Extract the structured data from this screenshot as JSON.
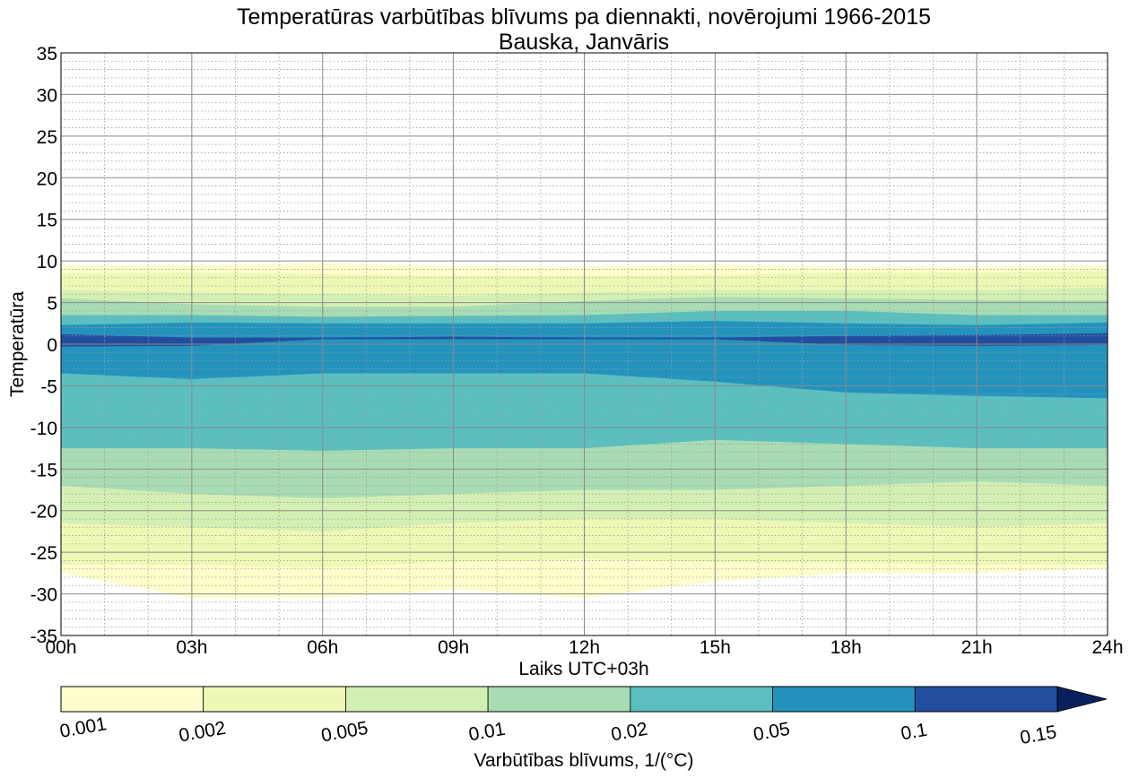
{
  "chart_data": {
    "type": "contourf",
    "title": "Temperatūras varbūtības blīvums pa diennakti, novērojumi 1966-2015",
    "subtitle": "Bauska, Janvāris",
    "xlabel": "Laiks UTC+03h",
    "ylabel": "Temperatūra",
    "x_ticks": [
      "00h",
      "03h",
      "06h",
      "09h",
      "12h",
      "15h",
      "18h",
      "21h",
      "24h"
    ],
    "x_range_hours": [
      0,
      24
    ],
    "y_ticks": [
      35,
      30,
      25,
      20,
      15,
      10,
      5,
      0,
      -5,
      -10,
      -15,
      -20,
      -25,
      -30,
      -35
    ],
    "ylim": [
      -35,
      35
    ],
    "grid": "major solid, minor dotted",
    "colorbar": {
      "label": "Varbūtības blīvums, 1/(°C)",
      "levels": [
        "0.001",
        "0.002",
        "0.005",
        "0.01",
        "0.02",
        "0.05",
        "0.1",
        "0.15"
      ],
      "colors": [
        "#fdfecc",
        "#eef8b5",
        "#d4efb3",
        "#a9dcb4",
        "#5bbfc0",
        "#2393be",
        "#234ea0",
        "#0c1f5d"
      ],
      "extend": "max"
    },
    "x_hours": [
      0,
      3,
      6,
      9,
      12,
      15,
      18,
      21,
      24
    ],
    "contour_boundaries_celsius": [
      {
        "name": "0.001",
        "upper": [
          9.5,
          9.5,
          9.7,
          9.4,
          9.3,
          9.6,
          9.3,
          9.3,
          9.5
        ],
        "lower": [
          -27.5,
          -30.5,
          -30.5,
          -29.5,
          -30.5,
          -28.5,
          -27.5,
          -27.5,
          -27.0
        ]
      },
      {
        "name": "0.002",
        "upper": [
          8.5,
          8.6,
          8.4,
          8.2,
          8.2,
          8.3,
          8.6,
          8.6,
          8.8
        ],
        "lower": [
          -26.5,
          -26.5,
          -26.8,
          -26.2,
          -25.8,
          -26.2,
          -26.3,
          -26.5,
          -26.5
        ]
      },
      {
        "name": "0.005",
        "upper": [
          6.5,
          6.2,
          6.0,
          5.8,
          6.2,
          6.5,
          6.5,
          6.5,
          6.8
        ],
        "lower": [
          -21.5,
          -22.0,
          -22.5,
          -21.5,
          -21.0,
          -21.0,
          -21.5,
          -22.0,
          -21.5
        ]
      },
      {
        "name": "0.01",
        "upper": [
          5.5,
          4.8,
          4.5,
          4.5,
          5.2,
          5.7,
          5.5,
          5.3,
          5.3
        ],
        "lower": [
          -17.0,
          -18.0,
          -18.5,
          -18.0,
          -17.5,
          -17.5,
          -17.0,
          -16.5,
          -17.0
        ]
      },
      {
        "name": "0.02",
        "upper": [
          3.5,
          3.5,
          3.3,
          3.4,
          3.5,
          4.0,
          4.0,
          3.5,
          3.5
        ],
        "lower": [
          -12.5,
          -12.5,
          -12.8,
          -12.5,
          -12.5,
          -11.5,
          -12.0,
          -12.5,
          -12.5
        ]
      },
      {
        "name": "0.05",
        "upper": [
          2.3,
          2.6,
          2.5,
          2.5,
          2.5,
          2.8,
          2.5,
          2.3,
          2.6
        ],
        "lower": [
          -3.5,
          -4.2,
          -3.5,
          -3.5,
          -3.5,
          -4.5,
          -5.8,
          -6.2,
          -6.5
        ]
      },
      {
        "name": "0.1",
        "upper": [
          1.2,
          0.8,
          0.8,
          0.9,
          0.8,
          0.8,
          1.0,
          1.1,
          1.3
        ],
        "lower": [
          -0.3,
          -0.2,
          0.6,
          0.6,
          0.6,
          0.6,
          -0.1,
          -0.2,
          -0.1
        ]
      }
    ]
  }
}
